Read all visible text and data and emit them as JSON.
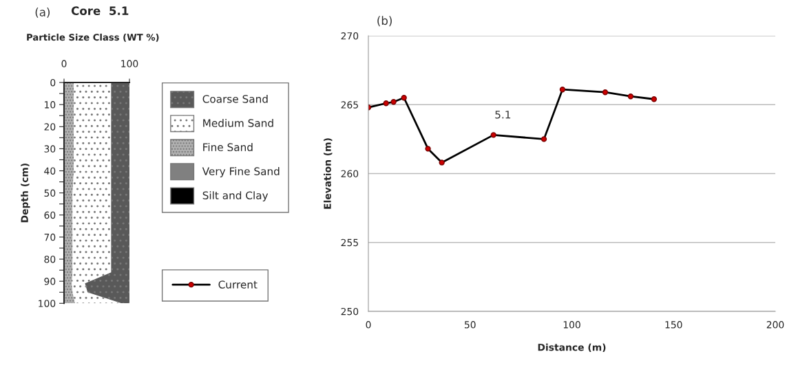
{
  "chart_data": [
    {
      "type": "area",
      "orientation": "horizontal",
      "stacked": true,
      "title": "Core  5.1",
      "subtitle": "Particle Size Class (WT %)",
      "ylabel": "Depth (cm)",
      "annotations": [
        "(a)"
      ],
      "x": [
        0,
        10,
        20,
        30,
        40,
        50,
        60,
        70,
        80,
        86,
        91,
        95,
        100
      ],
      "series": [
        {
          "name": "Silt and Clay",
          "color": "#000000",
          "values": [
            null,
            null,
            null,
            null,
            null,
            null,
            null,
            null,
            null,
            null,
            null,
            null,
            null
          ]
        },
        {
          "name": "Very Fine Sand",
          "color": "#808080",
          "values": [
            null,
            null,
            null,
            null,
            null,
            null,
            null,
            null,
            null,
            null,
            null,
            null,
            null
          ]
        },
        {
          "name": "Fine Sand",
          "color": "#b0b0b0",
          "values": [
            15,
            15,
            15,
            15,
            15,
            13,
            13,
            13,
            13,
            13,
            12,
            13,
            17
          ]
        },
        {
          "name": "Medium Sand",
          "color": "#ffffff",
          "values": [
            57,
            57,
            57,
            57,
            57,
            59,
            59,
            59,
            59,
            59,
            20,
            23,
            71
          ]
        },
        {
          "name": "Coarse Sand",
          "color": "#595959",
          "values": [
            28,
            28,
            28,
            28,
            28,
            28,
            28,
            28,
            28,
            28,
            68,
            64,
            12
          ]
        }
      ],
      "xlim": [
        0,
        100
      ],
      "xticks": [
        0,
        100
      ],
      "ylim": [
        100,
        0
      ],
      "yticks": [
        0,
        {
          "value": 5,
          "label": null
        },
        10,
        {
          "value": 15,
          "label": null
        },
        20,
        {
          "value": 25,
          "label": null
        },
        30,
        {
          "value": 35,
          "label": null
        },
        40,
        {
          "value": 45,
          "label": null
        },
        50,
        {
          "value": 55,
          "label": null
        },
        60,
        {
          "value": 65,
          "label": null
        },
        70,
        {
          "value": 75,
          "label": null
        },
        80,
        {
          "value": 85,
          "label": null
        },
        90,
        {
          "value": 95,
          "label": null
        },
        100
      ],
      "legend": "right",
      "grid": false
    },
    {
      "type": "line",
      "xlabel": "Distance (m)",
      "ylabel": "Elevation (m)",
      "annotations": [
        "(b)",
        "5.1"
      ],
      "series": [
        {
          "name": "Current",
          "color": "#000000",
          "x": [
            0,
            8.7,
            12.4,
            17.5,
            29.3,
            36.1,
            61.5,
            86.3,
            95.4,
            116.4,
            128.9,
            140.4
          ],
          "values": [
            264.8,
            265.1,
            265.2,
            265.5,
            261.8,
            260.8,
            262.8,
            262.5,
            266.1,
            265.9,
            265.6,
            265.4
          ]
        }
      ],
      "xlim": [
        0,
        200
      ],
      "xticks": [
        0,
        50,
        100,
        150,
        200
      ],
      "ylim": [
        250,
        270
      ],
      "yticks": [
        250,
        255,
        260,
        265,
        270
      ],
      "grid": "y",
      "marker": "circle",
      "line_style": "solid",
      "legend": "left"
    }
  ]
}
